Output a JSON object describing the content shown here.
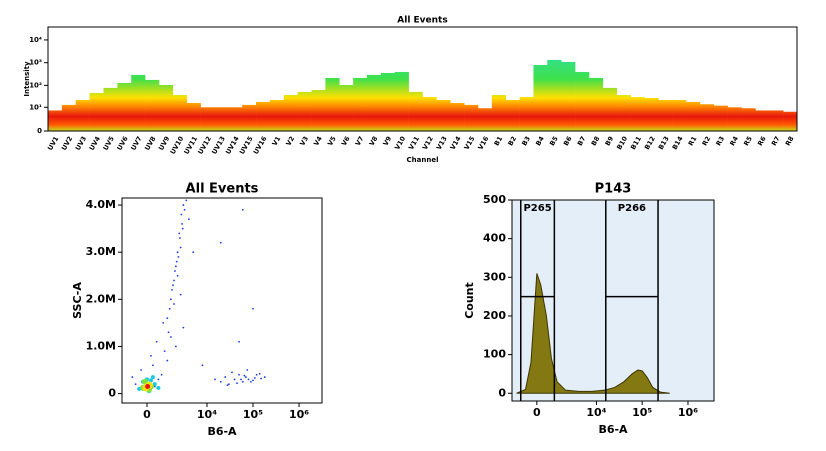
{
  "chart_data": [
    {
      "type": "spectrum",
      "title": "All Events",
      "xlabel": "Channel",
      "ylabel": "Intensity",
      "categories": [
        "UV1",
        "UV2",
        "UV3",
        "UV4",
        "UV5",
        "UV6",
        "UV7",
        "UV8",
        "UV9",
        "UV10",
        "UV11",
        "UV12",
        "UV13",
        "UV14",
        "UV15",
        "UV16",
        "V1",
        "V2",
        "V3",
        "V4",
        "V5",
        "V6",
        "V7",
        "V8",
        "V9",
        "V10",
        "V11",
        "V12",
        "V13",
        "V14",
        "V15",
        "V16",
        "B1",
        "B2",
        "B3",
        "B4",
        "B5",
        "B6",
        "B7",
        "B8",
        "B9",
        "B10",
        "B11",
        "B12",
        "B13",
        "B14",
        "R1",
        "R2",
        "R3",
        "R4",
        "R5",
        "R6",
        "R7",
        "R8"
      ],
      "values": [
        7,
        13,
        22,
        46,
        77,
        128,
        290,
        174,
        104,
        37,
        16,
        10,
        10,
        10,
        13,
        18,
        22,
        37,
        51,
        62,
        213,
        104,
        213,
        290,
        353,
        391,
        51,
        30,
        22,
        16,
        13,
        9,
        37,
        22,
        30,
        795,
        1320,
        1080,
        391,
        213,
        77,
        37,
        30,
        27,
        22,
        22,
        18,
        14,
        12,
        10,
        9,
        7,
        7,
        6
      ],
      "ylim": [
        0,
        37000
      ],
      "yscale": "log",
      "yticks": [
        0,
        {
          "value": 10,
          "label": "10¹"
        },
        {
          "value": 100,
          "label": "10²"
        },
        {
          "value": 1000,
          "label": "10³"
        },
        {
          "value": 10000,
          "label": "10⁴"
        }
      ],
      "colors": [
        "#20e0e8",
        "#3ee04a",
        "#ffe100",
        "#ff8c00",
        "#e8160c",
        "#ff5a00",
        "#c8e01e"
      ]
    },
    {
      "type": "scatter",
      "title": "All Events",
      "xlabel": "B6-A",
      "ylabel": "SSC-A",
      "xlim": [
        -1600,
        3150000
      ],
      "xscale": "biexponential",
      "xticks": [
        0,
        {
          "value": 10000,
          "label": "10⁴"
        },
        {
          "value": 100000,
          "label": "10⁵"
        },
        {
          "value": 1000000,
          "label": "10⁶"
        }
      ],
      "ylim": [
        -200000,
        4150000
      ],
      "yticks": [
        0,
        {
          "value": 1000000,
          "label": "1.0M"
        },
        {
          "value": 2000000,
          "label": "2.0M"
        },
        {
          "value": 3000000,
          "label": "3.0M"
        },
        {
          "value": 4000000,
          "label": "4.0M"
        }
      ],
      "series": [
        {
          "color": "#1a3ee8",
          "x": [
            1200,
            1500,
            1800,
            2000,
            2200,
            2500,
            2800,
            3000,
            1600,
            1900,
            2300,
            2600,
            1400,
            2100,
            2400,
            2700,
            1700,
            3200,
            3500,
            2900,
            1300,
            1800,
            2200,
            4000,
            5000,
            2600
          ],
          "values": [
            1600000,
            2000000,
            2400000,
            2700000,
            3000000,
            3300000,
            3600000,
            4000000,
            2200000,
            2600000,
            2900000,
            3100000,
            1800000,
            2800000,
            3400000,
            3800000,
            2300000,
            3900000,
            4100000,
            3500000,
            1300000,
            1900000,
            2500000,
            3700000,
            3000000,
            2100000
          ]
        },
        {
          "color": "#1a3ee8",
          "x": [
            15000,
            20000,
            25000,
            30000,
            40000,
            50000,
            60000,
            70000,
            80000,
            100000,
            120000,
            150000,
            180000,
            35000,
            45000,
            55000,
            65000,
            90000,
            110000,
            140000,
            28000,
            75000
          ],
          "values": [
            300000,
            250000,
            350000,
            200000,
            300000,
            400000,
            250000,
            350000,
            300000,
            280000,
            400000,
            320000,
            350000,
            450000,
            220000,
            300000,
            380000,
            250000,
            330000,
            420000,
            180000,
            500000
          ]
        },
        {
          "color": "#1a3ee8",
          "x": [
            -300,
            200,
            500,
            800,
            1000,
            1500,
            600,
            -600,
            300,
            1200,
            2000,
            3000,
            8000,
            50000,
            100000,
            20000,
            60000,
            -800,
            900,
            400
          ],
          "values": [
            500000,
            800000,
            1100000,
            400000,
            900000,
            1200000,
            300000,
            200000,
            600000,
            700000,
            1000000,
            1400000,
            600000,
            1100000,
            1800000,
            3200000,
            3900000,
            350000,
            1500000,
            150000
          ]
        },
        {
          "color": "#18c8e8",
          "x": [
            -400,
            -200,
            0,
            200,
            400,
            600,
            100,
            -100,
            300
          ],
          "values": [
            100000,
            250000,
            300000,
            280000,
            200000,
            120000,
            50000,
            150000,
            350000
          ]
        },
        {
          "color": "#7ee03a",
          "x": [
            -200,
            0,
            200,
            100,
            -100
          ],
          "values": [
            120000,
            200000,
            150000,
            80000,
            250000
          ]
        },
        {
          "color": "#f2e21a",
          "x": [
            0,
            120,
            -60
          ],
          "values": [
            150000,
            180000,
            120000
          ]
        },
        {
          "color": "#e8160c",
          "x": [
            30
          ],
          "values": [
            150000
          ]
        }
      ]
    },
    {
      "type": "area",
      "title": "P143",
      "xlabel": "B6-A",
      "ylabel": "Count",
      "x": [
        -1200,
        -600,
        -300,
        0,
        200,
        500,
        800,
        1200,
        2000,
        4000,
        8000,
        15000,
        25000,
        40000,
        60000,
        80000,
        100000,
        130000,
        170000,
        250000,
        400000
      ],
      "values": [
        0,
        10,
        80,
        310,
        280,
        200,
        90,
        30,
        8,
        5,
        5,
        8,
        15,
        30,
        50,
        60,
        58,
        40,
        15,
        3,
        0
      ],
      "color": "#837812",
      "background": "#e3eef9",
      "xlim": [
        -1600,
        3700000
      ],
      "xscale": "biexponential",
      "xticks": [
        0,
        {
          "value": 10000,
          "label": "10⁴"
        },
        {
          "value": 100000,
          "label": "10⁵"
        },
        {
          "value": 1000000,
          "label": "10⁶"
        }
      ],
      "ylim": [
        -20,
        500
      ],
      "yticks": [
        0,
        100,
        200,
        300,
        400,
        500
      ],
      "gates": [
        {
          "name": "P265",
          "x": [
            -900,
            1000
          ],
          "y": 250
        },
        {
          "name": "P266",
          "x": [
            16000,
            222000
          ],
          "y": 250
        }
      ]
    }
  ]
}
